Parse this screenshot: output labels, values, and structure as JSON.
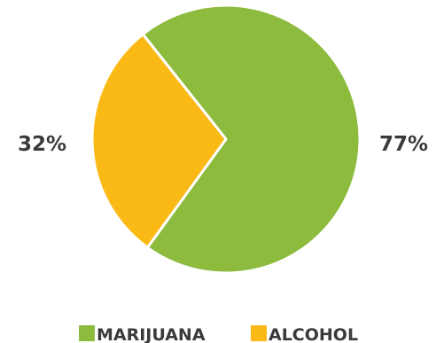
{
  "chart_data": {
    "type": "pie",
    "series": [
      {
        "name": "MARIJUANA",
        "value": 77,
        "label": "77%",
        "color": "#8dbb3e"
      },
      {
        "name": "ALCOHOL",
        "value": 32,
        "label": "32%",
        "color": "#fbb916"
      }
    ],
    "legend_position": "bottom",
    "label_color": "#3a3a3a",
    "separator_color": "#ffffff"
  }
}
